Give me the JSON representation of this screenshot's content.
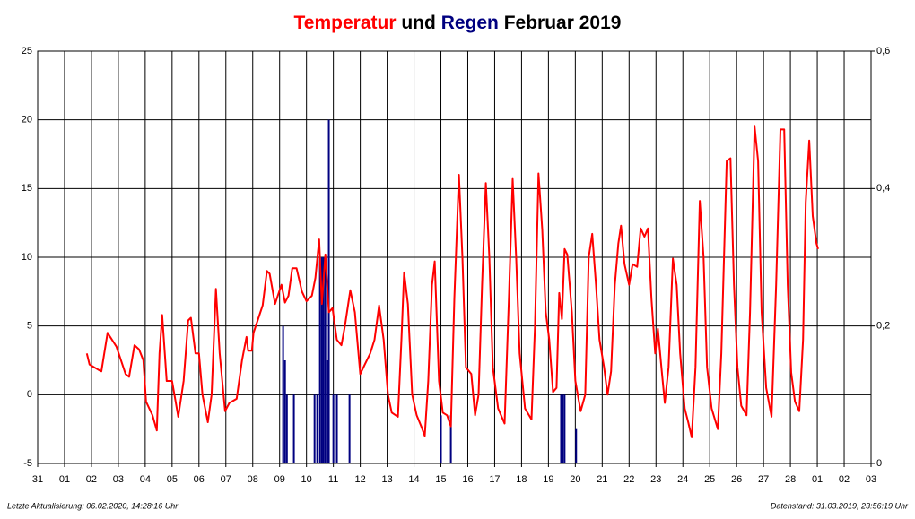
{
  "chart_data": {
    "type": "line",
    "title": [
      "Temperatur",
      "und",
      "Regen",
      "Februar 2019"
    ],
    "title_colors": [
      "#ff0000",
      "#000000",
      "#000080",
      "#000000"
    ],
    "footer_left": "Letzte Aktualisierung: 06.02.2020, 14:28:16 Uhr",
    "footer_right": "Datenstand: 31.03.2019, 23:56:19 Uhr",
    "xlim": [
      0,
      31
    ],
    "xticks": [
      {
        "value": 0,
        "label": "31"
      },
      {
        "value": 1,
        "label": "01"
      },
      {
        "value": 2,
        "label": "02"
      },
      {
        "value": 3,
        "label": "03"
      },
      {
        "value": 4,
        "label": "04"
      },
      {
        "value": 5,
        "label": "05"
      },
      {
        "value": 6,
        "label": "06"
      },
      {
        "value": 7,
        "label": "07"
      },
      {
        "value": 8,
        "label": "08"
      },
      {
        "value": 9,
        "label": "09"
      },
      {
        "value": 10,
        "label": "10"
      },
      {
        "value": 11,
        "label": "11"
      },
      {
        "value": 12,
        "label": "12"
      },
      {
        "value": 13,
        "label": "13"
      },
      {
        "value": 14,
        "label": "14"
      },
      {
        "value": 15,
        "label": "15"
      },
      {
        "value": 16,
        "label": "16"
      },
      {
        "value": 17,
        "label": "17"
      },
      {
        "value": 18,
        "label": "18"
      },
      {
        "value": 19,
        "label": "19"
      },
      {
        "value": 20,
        "label": "20"
      },
      {
        "value": 21,
        "label": "21"
      },
      {
        "value": 22,
        "label": "22"
      },
      {
        "value": 23,
        "label": "23"
      },
      {
        "value": 24,
        "label": "24"
      },
      {
        "value": 25,
        "label": "25"
      },
      {
        "value": 26,
        "label": "26"
      },
      {
        "value": 27,
        "label": "27"
      },
      {
        "value": 28,
        "label": "28"
      },
      {
        "value": 29,
        "label": "01"
      },
      {
        "value": 30,
        "label": "02"
      },
      {
        "value": 31,
        "label": "03"
      }
    ],
    "ylim": [
      -5,
      25
    ],
    "yticks": [
      -5,
      0,
      5,
      10,
      15,
      20,
      25
    ],
    "y2lim": [
      0,
      0.6
    ],
    "y2ticks": [
      0,
      {
        "value": 0.2,
        "label": "0,2"
      },
      {
        "value": 0.4,
        "label": "0,4"
      },
      {
        "value": 0.6,
        "label": "0,6"
      }
    ],
    "grid": true,
    "series": [
      {
        "name": "Regen",
        "type": "bar",
        "axis": "y2",
        "color": "#000080",
        "x": [
          9.13,
          9.2,
          9.27,
          9.53,
          10.3,
          10.4,
          10.5,
          10.57,
          10.63,
          10.7,
          10.77,
          10.83,
          11.0,
          11.13,
          11.6,
          15.0,
          15.37,
          19.47,
          19.53,
          19.6,
          20.03
        ],
        "values": [
          0.2,
          0.15,
          0.1,
          0.1,
          0.1,
          0.1,
          0.3,
          0.3,
          0.3,
          0.3,
          0.15,
          0.5,
          0.1,
          0.1,
          0.1,
          0.07,
          0.07,
          0.1,
          0.1,
          0.1,
          0.05
        ]
      },
      {
        "name": "Temperatur",
        "type": "line",
        "color": "#ff0000",
        "x": [
          1.83,
          1.93,
          2.27,
          2.37,
          2.6,
          2.93,
          3.27,
          3.4,
          3.6,
          3.77,
          3.93,
          4.03,
          4.27,
          4.43,
          4.53,
          4.63,
          4.8,
          5.0,
          5.23,
          5.43,
          5.6,
          5.7,
          5.87,
          6.0,
          6.13,
          6.33,
          6.47,
          6.63,
          6.77,
          6.97,
          7.13,
          7.4,
          7.6,
          7.77,
          7.83,
          7.97,
          8.03,
          8.2,
          8.37,
          8.53,
          8.63,
          8.83,
          9.07,
          9.2,
          9.33,
          9.47,
          9.63,
          9.83,
          10.0,
          10.2,
          10.33,
          10.47,
          10.57,
          10.7,
          10.83,
          10.97,
          11.13,
          11.3,
          11.43,
          11.63,
          11.8,
          12.0,
          12.17,
          12.37,
          12.53,
          12.7,
          12.87,
          13.03,
          13.17,
          13.4,
          13.53,
          13.63,
          13.77,
          13.93,
          14.1,
          14.27,
          14.4,
          14.53,
          14.67,
          14.77,
          14.93,
          15.07,
          15.23,
          15.37,
          15.5,
          15.67,
          15.8,
          15.93,
          16.13,
          16.27,
          16.4,
          16.53,
          16.67,
          16.8,
          16.93,
          17.13,
          17.37,
          17.53,
          17.67,
          17.8,
          17.93,
          18.13,
          18.37,
          18.5,
          18.63,
          18.77,
          18.9,
          19.03,
          19.17,
          19.3,
          19.4,
          19.5,
          19.6,
          19.7,
          19.87,
          20.0,
          20.2,
          20.37,
          20.5,
          20.63,
          20.77,
          20.9,
          21.07,
          21.2,
          21.33,
          21.47,
          21.6,
          21.7,
          21.83,
          22.0,
          22.13,
          22.3,
          22.43,
          22.57,
          22.7,
          22.83,
          22.97,
          23.07,
          23.2,
          23.33,
          23.47,
          23.63,
          23.77,
          23.9,
          24.07,
          24.2,
          24.33,
          24.47,
          24.63,
          24.77,
          24.9,
          25.07,
          25.3,
          25.43,
          25.63,
          25.77,
          25.9,
          26.03,
          26.17,
          26.37,
          26.5,
          26.67,
          26.8,
          26.93,
          27.1,
          27.3,
          27.47,
          27.63,
          27.77,
          27.9,
          28.03,
          28.17,
          28.33,
          28.47,
          28.57,
          28.7,
          28.83,
          28.97,
          29.03
        ],
        "values": [
          3,
          2.2,
          1.8,
          1.7,
          4.5,
          3.5,
          1.5,
          1.3,
          3.6,
          3.3,
          2.5,
          -0.5,
          -1.5,
          -2.6,
          3,
          5.8,
          1,
          1,
          -1.6,
          1,
          5.4,
          5.6,
          3,
          3,
          0,
          -2,
          0,
          7.7,
          3,
          -1.2,
          -0.6,
          -0.3,
          2.5,
          4.2,
          3.2,
          3.2,
          4.5,
          5.5,
          6.5,
          9.0,
          8.8,
          6.6,
          8,
          6.7,
          7.2,
          9.2,
          9.2,
          7.5,
          6.8,
          7.2,
          8.5,
          11.3,
          6.6,
          10.2,
          6,
          6.3,
          4,
          3.6,
          5,
          7.6,
          6,
          1.5,
          2.2,
          3,
          4,
          6.5,
          4,
          0,
          -1.3,
          -1.6,
          4,
          8.9,
          6.6,
          0,
          -1.5,
          -2.3,
          -3,
          1,
          8,
          9.7,
          1,
          -1.3,
          -1.5,
          -2.3,
          7,
          16,
          10,
          2,
          1.5,
          -1.5,
          0,
          8,
          15.4,
          10,
          2,
          -1.0,
          -2.1,
          7,
          15.7,
          10,
          3,
          -1,
          -1.8,
          5,
          16.1,
          12,
          6,
          4,
          0.2,
          0.5,
          7.4,
          5.5,
          10.6,
          10.2,
          6,
          1,
          -1.2,
          0,
          10,
          11.7,
          8,
          4,
          2,
          0,
          1.7,
          8,
          11,
          12.3,
          9.5,
          8,
          9.5,
          9.3,
          12.1,
          11.5,
          12.1,
          7,
          3,
          4.8,
          2,
          -0.6,
          2,
          9.9,
          8,
          3,
          -1,
          -2,
          -3.1,
          2,
          14.1,
          10,
          2,
          -1,
          -2.5,
          3,
          17,
          17.2,
          8,
          2,
          -0.8,
          -1.5,
          6,
          19.5,
          17,
          6,
          0.5,
          -1.6,
          8,
          19.3,
          19.3,
          8,
          1.6,
          -0.5,
          -1.2,
          4,
          14,
          18.5,
          13,
          11,
          10.6
        ]
      }
    ]
  }
}
